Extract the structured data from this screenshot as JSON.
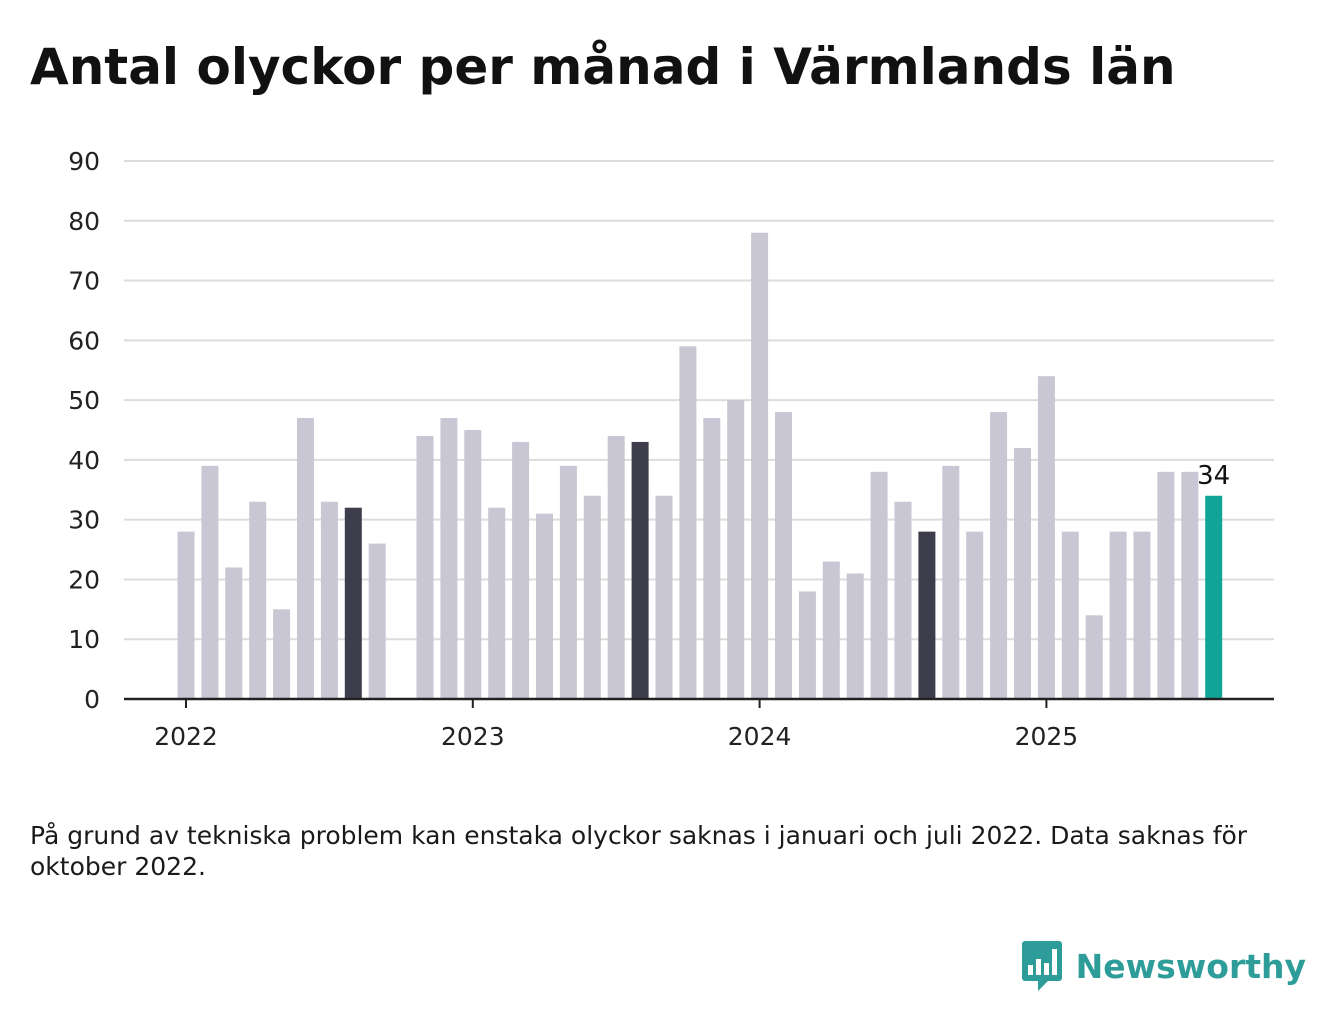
{
  "title": "Antal olyckor per månad i Värmlands län",
  "footnote": "På grund av tekniska problem kan enstaka olyckor saknas i januari och juli 2022. Data saknas för oktober 2022.",
  "brand": {
    "name": "Newsworthy",
    "icon": "bar-chart-speech-bubble-icon"
  },
  "colors": {
    "default_bar": "#c8c7d3",
    "highlight_bar": "#3e3d4b",
    "latest_bar": "#11a59a",
    "grid": "#dcdcdc",
    "axis": "#222222",
    "brand": "#2e9d9a"
  },
  "chart_data": {
    "type": "bar",
    "title": "Antal olyckor per månad i Värmlands län",
    "xlabel": "",
    "ylabel": "",
    "ylim": [
      0,
      90
    ],
    "yticks": [
      "0",
      "10",
      "20",
      "30",
      "40",
      "50",
      "60",
      "70",
      "80",
      "90"
    ],
    "xticks": [
      {
        "label": "2022",
        "month": "2022-01"
      },
      {
        "label": "2023",
        "month": "2023-01"
      },
      {
        "label": "2024",
        "month": "2024-01"
      },
      {
        "label": "2025",
        "month": "2025-01"
      }
    ],
    "grid": true,
    "months": [
      "2022-01",
      "2022-02",
      "2022-03",
      "2022-04",
      "2022-05",
      "2022-06",
      "2022-07",
      "2022-08",
      "2022-09",
      "2022-10",
      "2022-11",
      "2022-12",
      "2023-01",
      "2023-02",
      "2023-03",
      "2023-04",
      "2023-05",
      "2023-06",
      "2023-07",
      "2023-08",
      "2023-09",
      "2023-10",
      "2023-11",
      "2023-12",
      "2024-01",
      "2024-02",
      "2024-03",
      "2024-04",
      "2024-05",
      "2024-06",
      "2024-07",
      "2024-08",
      "2024-09",
      "2024-10",
      "2024-11",
      "2024-12",
      "2025-01",
      "2025-02",
      "2025-03",
      "2025-04",
      "2025-05",
      "2025-06",
      "2025-07",
      "2025-08"
    ],
    "values": [
      28,
      39,
      22,
      33,
      15,
      47,
      33,
      32,
      26,
      null,
      44,
      47,
      45,
      32,
      43,
      31,
      39,
      34,
      44,
      43,
      34,
      59,
      47,
      50,
      78,
      48,
      18,
      23,
      21,
      38,
      33,
      28,
      39,
      28,
      48,
      42,
      54,
      28,
      14,
      28,
      28,
      38,
      38,
      34
    ],
    "highlighted_months": [
      "2022-08",
      "2023-08",
      "2024-08"
    ],
    "latest": {
      "month": "2025-08",
      "value": 34,
      "label": "34"
    }
  }
}
